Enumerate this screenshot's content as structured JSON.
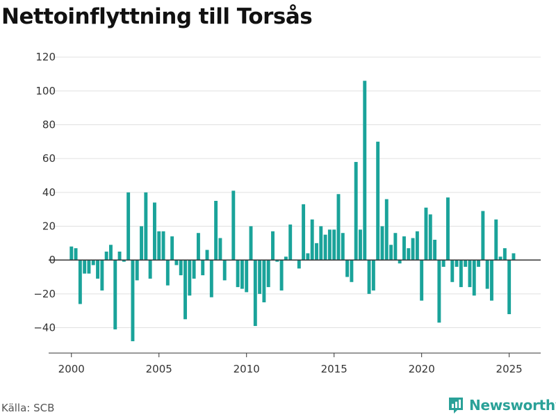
{
  "title": "Nettoinflyttning till Torsås",
  "source": "Källa: SCB",
  "brand": "Newsworthy",
  "colors": {
    "bar": "#1aa39a",
    "brand": "#2aa198",
    "grid": "#e0e0e0",
    "zero": "#333333"
  },
  "chart_data": {
    "type": "bar",
    "title": "Nettoinflyttning till Torsås",
    "xlabel": "",
    "ylabel": "",
    "xlim": [
      1998.7,
      2026.8
    ],
    "ylim": [
      -55,
      125
    ],
    "yticks": [
      -40,
      -20,
      0,
      20,
      40,
      60,
      80,
      100,
      120
    ],
    "xticks": [
      2000,
      2005,
      2010,
      2015,
      2020,
      2025
    ],
    "grid": true,
    "legend": "none",
    "x": [
      2000.0,
      2000.25,
      2000.5,
      2000.75,
      2001.0,
      2001.25,
      2001.5,
      2001.75,
      2002.0,
      2002.25,
      2002.5,
      2002.75,
      2003.0,
      2003.25,
      2003.5,
      2003.75,
      2004.0,
      2004.25,
      2004.5,
      2004.75,
      2005.0,
      2005.25,
      2005.5,
      2005.75,
      2006.0,
      2006.25,
      2006.5,
      2006.75,
      2007.0,
      2007.25,
      2007.5,
      2007.75,
      2008.0,
      2008.25,
      2008.5,
      2008.75,
      2009.0,
      2009.25,
      2009.5,
      2009.75,
      2010.0,
      2010.25,
      2010.5,
      2010.75,
      2011.0,
      2011.25,
      2011.5,
      2011.75,
      2012.0,
      2012.25,
      2012.5,
      2012.75,
      2013.0,
      2013.25,
      2013.5,
      2013.75,
      2014.0,
      2014.25,
      2014.5,
      2014.75,
      2015.0,
      2015.25,
      2015.5,
      2015.75,
      2016.0,
      2016.25,
      2016.5,
      2016.75,
      2017.0,
      2017.25,
      2017.5,
      2017.75,
      2018.0,
      2018.25,
      2018.5,
      2018.75,
      2019.0,
      2019.25,
      2019.5,
      2019.75,
      2020.0,
      2020.25,
      2020.5,
      2020.75,
      2021.0,
      2021.25,
      2021.5,
      2021.75,
      2022.0,
      2022.25,
      2022.5,
      2022.75,
      2023.0,
      2023.25,
      2023.5,
      2023.75,
      2024.0,
      2024.25,
      2024.5,
      2024.75,
      2025.0,
      2025.25
    ],
    "values": [
      8,
      7,
      -26,
      -8,
      -8,
      -3,
      -11,
      -18,
      5,
      9,
      -41,
      5,
      -1,
      40,
      -48,
      -12,
      20,
      40,
      -11,
      34,
      17,
      17,
      -15,
      14,
      -3,
      -9,
      -35,
      -21,
      -11,
      16,
      -9,
      6,
      -22,
      35,
      13,
      -12,
      0,
      41,
      -16,
      -17,
      -19,
      20,
      -39,
      -20,
      -25,
      -16,
      17,
      -1,
      -18,
      2,
      21,
      0,
      -5,
      33,
      4,
      24,
      10,
      20,
      15,
      18,
      18,
      39,
      16,
      -10,
      -13,
      58,
      18,
      106,
      -20,
      -18,
      70,
      20,
      36,
      9,
      16,
      -2,
      14,
      7,
      13,
      17,
      -24,
      31,
      27,
      12,
      -37,
      -4,
      37,
      -13,
      -4,
      -16,
      -4,
      -16,
      -21,
      -4,
      29,
      -17,
      -24,
      24,
      2,
      7,
      -32,
      4
    ]
  }
}
